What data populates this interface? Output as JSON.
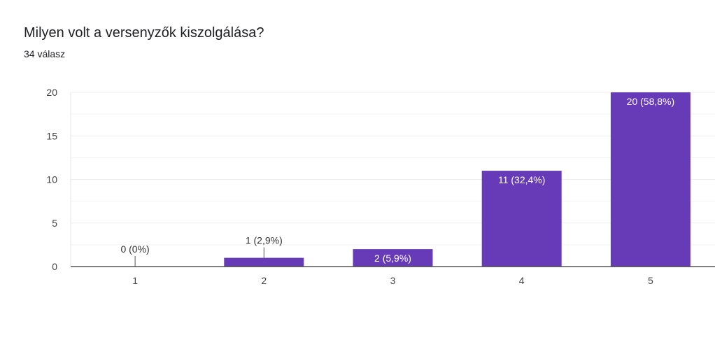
{
  "header": {
    "question": "Milyen volt a versenyzők kiszolgálása?",
    "responses": "34 válasz"
  },
  "colors": {
    "bar": "#673ab7",
    "inside_label": "#ffffff",
    "outside_label": "#333333",
    "axis": "#333333",
    "grid": "#eeeeee"
  },
  "chart_data": {
    "type": "bar",
    "title": "Milyen volt a versenyzők kiszolgálása?",
    "xlabel": "",
    "ylabel": "",
    "categories": [
      "1",
      "2",
      "3",
      "4",
      "5"
    ],
    "values": [
      0,
      1,
      2,
      11,
      20
    ],
    "data_labels": [
      "0 (0%)",
      "1 (2,9%)",
      "2 (5,9%)",
      "11 (32,4%)",
      "20 (58,8%)"
    ],
    "ylim": [
      0,
      20
    ],
    "yticks": [
      0,
      5,
      10,
      15,
      20
    ],
    "grid": true,
    "legend": "none"
  }
}
